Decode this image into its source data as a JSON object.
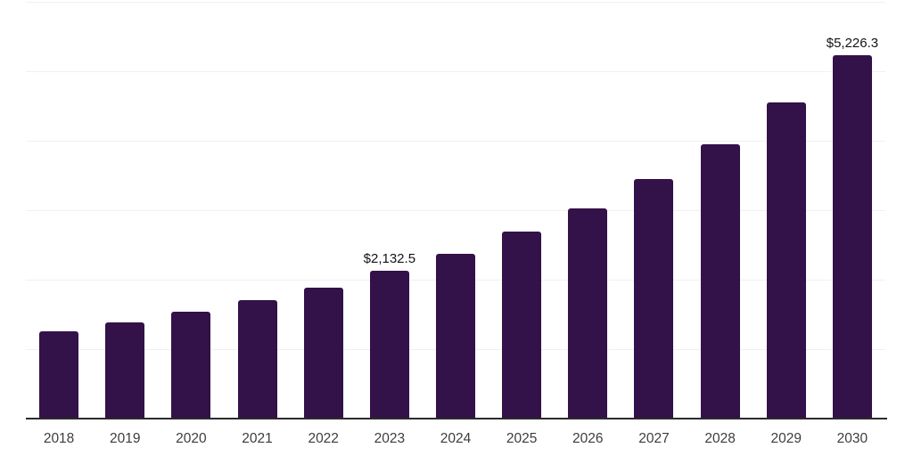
{
  "chart_data": {
    "type": "bar",
    "title": "",
    "xlabel": "",
    "ylabel": "",
    "categories": [
      "2018",
      "2019",
      "2020",
      "2021",
      "2022",
      "2023",
      "2024",
      "2025",
      "2026",
      "2027",
      "2028",
      "2029",
      "2030"
    ],
    "values": [
      1255,
      1385,
      1540,
      1710,
      1890,
      2132.5,
      2375,
      2690,
      3030,
      3450,
      3950,
      4555,
      5226.3
    ],
    "data_labels": [
      "",
      "",
      "",
      "",
      "",
      "$2,132.5",
      "",
      "",
      "",
      "",
      "",
      "",
      "$5,226.3"
    ],
    "ylim": [
      0,
      6000
    ],
    "gridlines": [
      1000,
      2000,
      3000,
      4000,
      5000,
      6000
    ],
    "grid": "horizontal",
    "y_axis_tick_labels": "none",
    "legend_position": "none",
    "colors": {
      "bar": "#331149",
      "gridline": "#f0f0f0",
      "axis_line": "#2b2b2b",
      "tick_label": "#3d3d3d",
      "data_label": "#141414",
      "background": "#ffffff"
    }
  }
}
